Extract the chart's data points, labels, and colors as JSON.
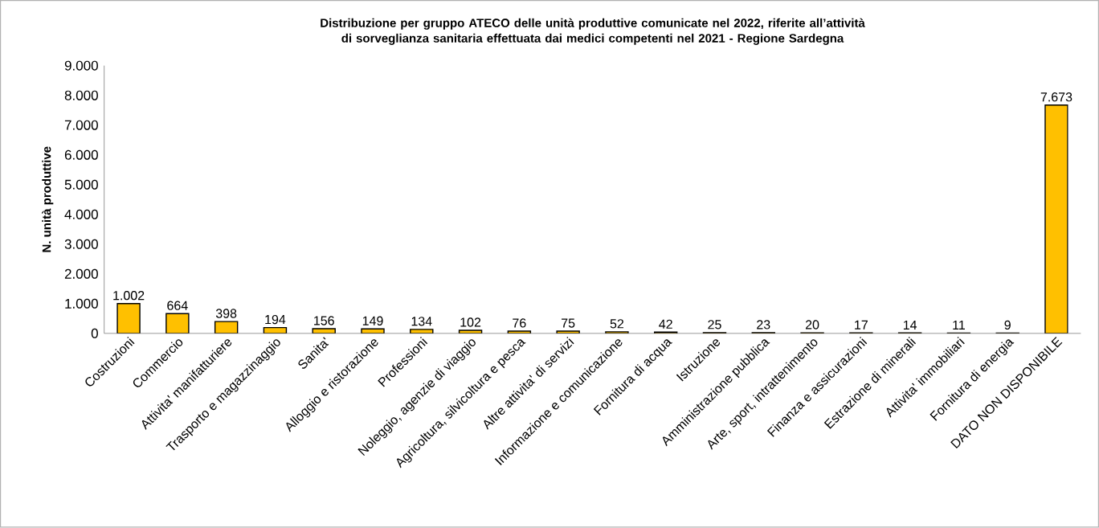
{
  "chart_data": {
    "type": "bar",
    "title": "Distribuzione per gruppo ATECO delle unità produttive comunicate nel 2022, riferite all’attività di sorveglianza sanitaria effettuata dai medici competenti nel 2021 - Regione Sardegna",
    "ylabel": "N. unità produttive",
    "categories": [
      "Costruzioni",
      "Commercio",
      "Attivita' manifatturiere",
      "Trasporto e magazzinaggio",
      "Sanita'",
      "Alloggio e ristorazione",
      "Professioni",
      "Noleggio, agenzie di viaggio",
      "Agricoltura, silvicoltura e pesca",
      "Altre attivita' di servizi",
      "Informazione e comunicazione",
      "Fornitura di acqua",
      "Istruzione",
      "Amministrazione pubblica",
      "Arte, sport, intrattenimento",
      "Finanza e assicurazioni",
      "Estrazione di minerali",
      "Attivita' immobiliari",
      "Fornitura di energia",
      "DATO NON DISPONIBILE"
    ],
    "values": [
      1002,
      664,
      398,
      194,
      156,
      149,
      134,
      102,
      76,
      75,
      52,
      42,
      25,
      23,
      20,
      17,
      14,
      11,
      9,
      7673
    ],
    "value_labels": [
      "1.002",
      "664",
      "398",
      "194",
      "156",
      "149",
      "134",
      "102",
      "76",
      "75",
      "52",
      "42",
      "25",
      "23",
      "20",
      "17",
      "14",
      "11",
      "9",
      "7.673"
    ],
    "color": "#ffc000",
    "ylim": [
      0,
      9000
    ],
    "yticks": [
      0,
      {
        "value": 1000,
        "label": "1.000"
      },
      {
        "value": 2000,
        "label": "2.000"
      },
      {
        "value": 3000,
        "label": "3.000"
      },
      {
        "value": 4000,
        "label": "4.000"
      },
      {
        "value": 5000,
        "label": "5.000"
      },
      {
        "value": 6000,
        "label": "6.000"
      },
      {
        "value": 7000,
        "label": "7.000"
      },
      {
        "value": 8000,
        "label": "8.000"
      },
      {
        "value": 9000,
        "label": "9.000"
      }
    ],
    "grid": false
  }
}
